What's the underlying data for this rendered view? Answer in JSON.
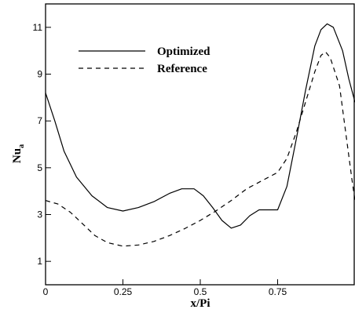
{
  "chart_data": {
    "type": "line",
    "title": "",
    "xlabel": "x/Pi",
    "ylabel_main": "Nu",
    "ylabel_sub": "a",
    "xlim": [
      0,
      1.0
    ],
    "ylim": [
      0,
      12
    ],
    "x_ticks": [
      0,
      0.25,
      0.5,
      0.75
    ],
    "x_tick_labels": [
      "0",
      "0.25",
      "0.5",
      "0.75"
    ],
    "y_ticks": [
      1,
      3,
      5,
      7,
      9,
      11
    ],
    "y_tick_labels": [
      "1",
      "3",
      "5",
      "7",
      "9",
      "11"
    ],
    "grid": false,
    "legend_position": "top-left",
    "series": [
      {
        "name": "Optimized",
        "style": "solid",
        "color": "#000000",
        "points": [
          [
            0.0,
            8.2
          ],
          [
            0.03,
            7.0
          ],
          [
            0.06,
            5.7
          ],
          [
            0.1,
            4.6
          ],
          [
            0.15,
            3.8
          ],
          [
            0.2,
            3.3
          ],
          [
            0.25,
            3.15
          ],
          [
            0.3,
            3.3
          ],
          [
            0.35,
            3.55
          ],
          [
            0.4,
            3.9
          ],
          [
            0.44,
            4.1
          ],
          [
            0.48,
            4.1
          ],
          [
            0.51,
            3.8
          ],
          [
            0.54,
            3.3
          ],
          [
            0.57,
            2.75
          ],
          [
            0.6,
            2.42
          ],
          [
            0.63,
            2.55
          ],
          [
            0.66,
            2.95
          ],
          [
            0.69,
            3.2
          ],
          [
            0.72,
            3.2
          ],
          [
            0.75,
            3.2
          ],
          [
            0.78,
            4.2
          ],
          [
            0.81,
            6.2
          ],
          [
            0.84,
            8.3
          ],
          [
            0.87,
            10.2
          ],
          [
            0.89,
            10.9
          ],
          [
            0.91,
            11.15
          ],
          [
            0.93,
            11.0
          ],
          [
            0.96,
            10.0
          ],
          [
            0.98,
            8.8
          ],
          [
            1.0,
            7.8
          ]
        ]
      },
      {
        "name": "Reference",
        "style": "dashed",
        "color": "#000000",
        "points": [
          [
            0.0,
            3.6
          ],
          [
            0.04,
            3.45
          ],
          [
            0.08,
            3.1
          ],
          [
            0.12,
            2.6
          ],
          [
            0.16,
            2.1
          ],
          [
            0.2,
            1.8
          ],
          [
            0.25,
            1.65
          ],
          [
            0.3,
            1.7
          ],
          [
            0.35,
            1.85
          ],
          [
            0.4,
            2.1
          ],
          [
            0.45,
            2.4
          ],
          [
            0.5,
            2.75
          ],
          [
            0.55,
            3.15
          ],
          [
            0.6,
            3.6
          ],
          [
            0.65,
            4.1
          ],
          [
            0.7,
            4.45
          ],
          [
            0.75,
            4.8
          ],
          [
            0.78,
            5.4
          ],
          [
            0.81,
            6.5
          ],
          [
            0.84,
            7.8
          ],
          [
            0.87,
            9.1
          ],
          [
            0.89,
            9.8
          ],
          [
            0.905,
            9.95
          ],
          [
            0.92,
            9.7
          ],
          [
            0.95,
            8.5
          ],
          [
            0.97,
            6.5
          ],
          [
            0.99,
            4.5
          ],
          [
            1.0,
            3.6
          ]
        ]
      }
    ]
  }
}
